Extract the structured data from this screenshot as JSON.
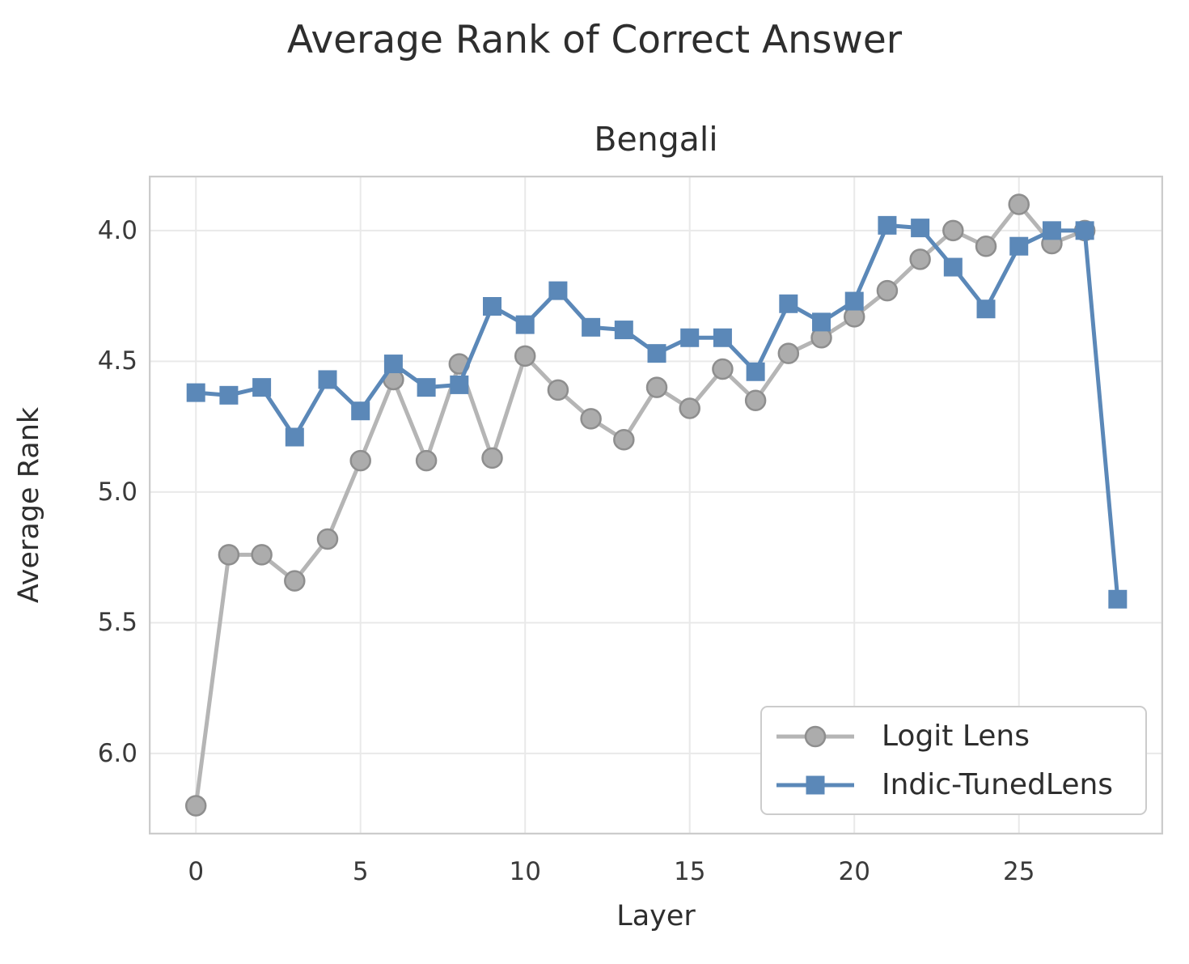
{
  "figure": {
    "suptitle": "Average Rank of Correct Answer",
    "title": "Bengali",
    "xlabel": "Layer",
    "ylabel": "Average Rank"
  },
  "chart_data": {
    "type": "line",
    "suptitle": "Average Rank of Correct Answer",
    "title": "Bengali",
    "xlabel": "Layer",
    "ylabel": "Average Rank",
    "y_axis_inverted": true,
    "grid": true,
    "legend_position": "lower right",
    "x_ticks": [
      "0",
      "5",
      "10",
      "15",
      "20",
      "25"
    ],
    "x_tick_values": [
      0,
      5,
      10,
      15,
      20,
      25
    ],
    "y_ticks": [
      "4.0",
      "4.5",
      "5.0",
      "5.5",
      "6.0"
    ],
    "y_tick_values": [
      4.0,
      4.5,
      5.0,
      5.5,
      6.0
    ],
    "x_range": [
      -1.43,
      29.38
    ],
    "y_range": [
      3.79,
      6.31
    ],
    "x": [
      0,
      1,
      2,
      3,
      4,
      5,
      6,
      7,
      8,
      9,
      10,
      11,
      12,
      13,
      14,
      15,
      16,
      17,
      18,
      19,
      20,
      21,
      22,
      23,
      24,
      25,
      26,
      27,
      28
    ],
    "series": [
      {
        "name": "Logit Lens",
        "marker": "circle",
        "line_color": "#b5b5b5",
        "marker_face": "#acacac",
        "marker_edge": "#8e8e8e",
        "x": [
          0,
          1,
          2,
          3,
          4,
          5,
          6,
          7,
          8,
          9,
          10,
          11,
          12,
          13,
          14,
          15,
          16,
          17,
          18,
          19,
          20,
          21,
          22,
          23,
          24,
          25,
          26,
          27
        ],
        "values": [
          6.2,
          5.24,
          5.24,
          5.34,
          5.18,
          4.88,
          4.57,
          4.88,
          4.51,
          4.87,
          4.48,
          4.61,
          4.72,
          4.8,
          4.6,
          4.68,
          4.53,
          4.65,
          4.47,
          4.41,
          4.33,
          4.23,
          4.11,
          4.0,
          4.06,
          3.9,
          4.05,
          4.0
        ]
      },
      {
        "name": "Indic-TunedLens",
        "marker": "square",
        "line_color": "#5b88b8",
        "marker_face": "#5b88b8",
        "marker_edge": "#5b88b8",
        "x": [
          0,
          1,
          2,
          3,
          4,
          5,
          6,
          7,
          8,
          9,
          10,
          11,
          12,
          13,
          14,
          15,
          16,
          17,
          18,
          19,
          20,
          21,
          22,
          23,
          24,
          25,
          26,
          27,
          28
        ],
        "values": [
          4.62,
          4.63,
          4.6,
          4.79,
          4.57,
          4.69,
          4.51,
          4.6,
          4.59,
          4.29,
          4.36,
          4.23,
          4.37,
          4.38,
          4.47,
          4.41,
          4.41,
          4.54,
          4.28,
          4.35,
          4.27,
          3.98,
          3.99,
          4.14,
          4.3,
          4.06,
          4.0,
          4.0,
          5.41
        ]
      }
    ],
    "style": {
      "grid_color": "#e9e9e9",
      "spine_color": "#cccccc",
      "background": "#ffffff",
      "line_width": 5,
      "marker_circle_radius": 12,
      "marker_square_size": 23
    }
  },
  "legend": {
    "items": [
      {
        "label": "Logit Lens"
      },
      {
        "label": "Indic-TunedLens"
      }
    ]
  }
}
